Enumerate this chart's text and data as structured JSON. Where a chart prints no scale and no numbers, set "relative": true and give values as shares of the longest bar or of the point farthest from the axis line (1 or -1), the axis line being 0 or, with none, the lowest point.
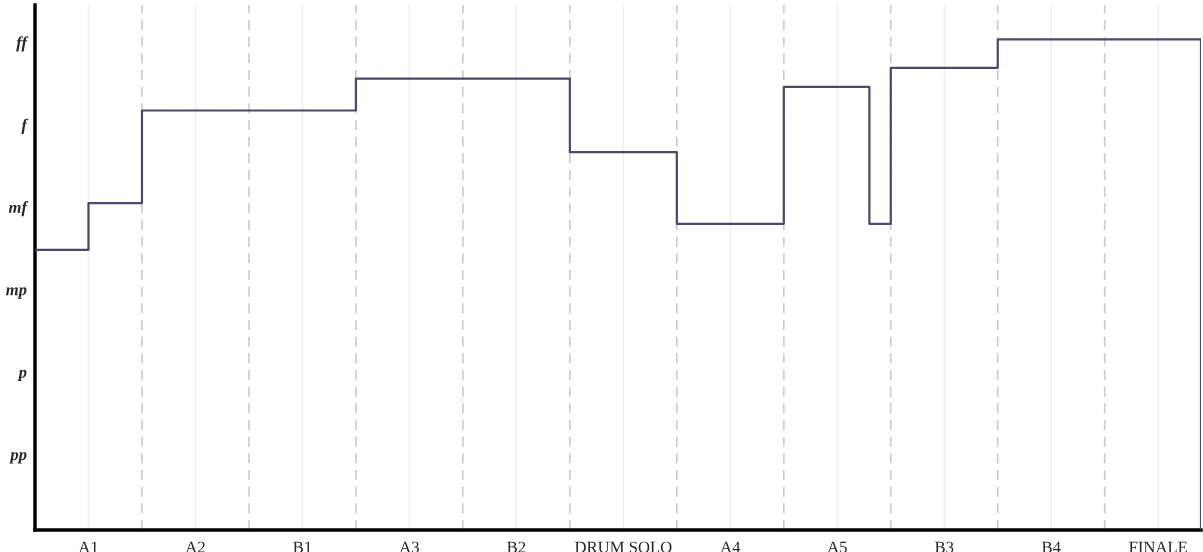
{
  "chart_data": {
    "type": "step",
    "relative": true,
    "categories": [
      null,
      null,
      null,
      null,
      null,
      "A1",
      null,
      null,
      null,
      null,
      null,
      null,
      null,
      null,
      null,
      "A2",
      null,
      null,
      null,
      null,
      null,
      null,
      null,
      null,
      null,
      "B1",
      null,
      null,
      null,
      null,
      null,
      null,
      null,
      null,
      null,
      "A3",
      null,
      null,
      null,
      null,
      null,
      null,
      null,
      null,
      null,
      "B2",
      null,
      null,
      null,
      null,
      null,
      null,
      null,
      null,
      null,
      "DRUM SOLO",
      null,
      null,
      null,
      null,
      null,
      null,
      null,
      null,
      null,
      "A4",
      null,
      null,
      null,
      null,
      null,
      null,
      null,
      null,
      null,
      "A5",
      null,
      null,
      null,
      null,
      null,
      null,
      null,
      null,
      null,
      "B3",
      null,
      null,
      null,
      null,
      null,
      null,
      null,
      null,
      null,
      "B4",
      null,
      null,
      null,
      null,
      null,
      null,
      null,
      null,
      null,
      "FINALE",
      null,
      null,
      null,
      null
    ],
    "series": [
      {
        "color": "#4a4a68",
        "values": [
          0.571,
          0.571,
          0.571,
          0.571,
          0.571,
          0.666,
          0.666,
          0.666,
          0.666,
          0.666,
          0.855,
          0.855,
          0.855,
          0.855,
          0.855,
          0.855,
          0.855,
          0.855,
          0.855,
          0.855,
          0.855,
          0.855,
          0.855,
          0.855,
          0.855,
          0.855,
          0.855,
          0.855,
          0.855,
          0.855,
          0.92,
          0.92,
          0.92,
          0.92,
          0.92,
          0.92,
          0.92,
          0.92,
          0.92,
          0.92,
          0.92,
          0.92,
          0.92,
          0.92,
          0.92,
          0.92,
          0.92,
          0.92,
          0.92,
          0.92,
          0.77,
          0.77,
          0.77,
          0.77,
          0.77,
          0.77,
          0.77,
          0.77,
          0.77,
          0.77,
          0.624,
          0.624,
          0.624,
          0.624,
          0.624,
          0.624,
          0.624,
          0.624,
          0.624,
          0.624,
          0.903,
          0.903,
          0.903,
          0.903,
          0.903,
          0.903,
          0.903,
          0.903,
          0.624,
          0.624,
          0.942,
          0.942,
          0.942,
          0.942,
          0.942,
          0.942,
          0.942,
          0.942,
          0.942,
          0.942,
          1,
          1,
          1,
          1,
          1,
          1,
          1,
          1,
          1,
          1,
          1,
          1,
          1,
          1,
          1,
          1,
          1,
          1,
          1,
          0
        ]
      }
    ],
    "annotations": [
      "pp",
      "p",
      "mp",
      "mf",
      "f",
      "ff"
    ],
    "grid": "x",
    "line_style": "solid",
    "marker": "none"
  }
}
